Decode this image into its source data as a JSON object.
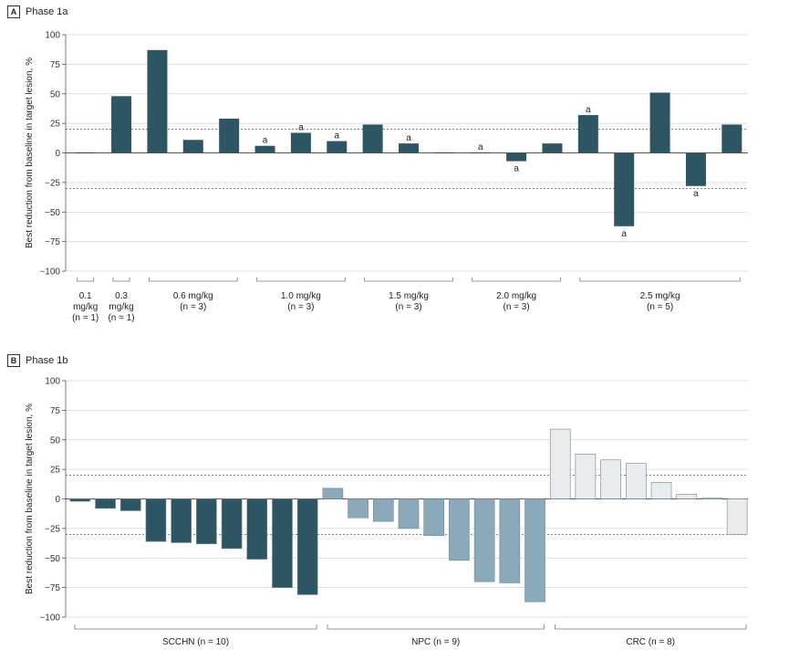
{
  "chart_data": [
    {
      "panel_letter": "A",
      "title": "Phase 1a",
      "type": "bar",
      "ylabel": "Best reduction from baseline in target lesion, %",
      "ylim": [
        -100,
        100
      ],
      "yticks": [
        "100",
        "75",
        "50",
        "25",
        "0",
        "-25",
        "-50",
        "-75",
        "-100"
      ],
      "reference_lines": [
        20,
        -30
      ],
      "bar_color": "#2e5564",
      "values": [
        0.5,
        48,
        87,
        11,
        29,
        6,
        17,
        10,
        24,
        8,
        0.5,
        0.5,
        -7,
        8,
        32,
        -62,
        51,
        -28,
        24
      ],
      "annotations": [
        "",
        "",
        "",
        "",
        "",
        "a",
        "a",
        "a",
        "",
        "a",
        "",
        "a",
        "a",
        "",
        "a",
        "a",
        "",
        "a",
        ""
      ],
      "groups": [
        {
          "lines": [
            "0.1",
            "mg/kg",
            "(n = 1)"
          ],
          "start": 0,
          "end": 0
        },
        {
          "lines": [
            "0.3",
            "mg/kg",
            "(n = 1)"
          ],
          "start": 1,
          "end": 1
        },
        {
          "lines": [
            "0.6 mg/kg",
            "(n = 3)"
          ],
          "start": 2,
          "end": 4
        },
        {
          "lines": [
            "1.0 mg/kg",
            "(n = 3)"
          ],
          "start": 5,
          "end": 7
        },
        {
          "lines": [
            "1.5 mg/kg",
            "(n = 3)"
          ],
          "start": 8,
          "end": 10
        },
        {
          "lines": [
            "2.0 mg/kg",
            "(n = 3)"
          ],
          "start": 11,
          "end": 13
        },
        {
          "lines": [
            "2.5 mg/kg",
            "(n = 5)"
          ],
          "start": 14,
          "end": 18
        }
      ]
    },
    {
      "panel_letter": "B",
      "title": "Phase 1b",
      "type": "bar",
      "ylabel": "Best reduction from baseline in target lesion, %",
      "ylim": [
        -100,
        100
      ],
      "yticks": [
        "100",
        "75",
        "50",
        "25",
        "0",
        "-25",
        "-50",
        "-75",
        "-100"
      ],
      "reference_lines": [
        20,
        -30
      ],
      "series": [
        {
          "name": "SCCHN (n = 10)",
          "color": "#2e5564",
          "values": [
            -2,
            -8,
            -10,
            -36,
            -37,
            -38,
            -42,
            -51,
            -75,
            -81
          ]
        },
        {
          "name": "NPC (n = 9)",
          "color": "#8aaabb",
          "values": [
            9,
            -16,
            -19,
            -25,
            -31,
            -52,
            -70,
            -71,
            -87
          ]
        },
        {
          "name": "CRC (n = 8)",
          "color": "#e8ecee",
          "values": [
            59,
            38,
            33,
            30,
            14,
            4,
            1,
            -30
          ]
        }
      ]
    }
  ]
}
